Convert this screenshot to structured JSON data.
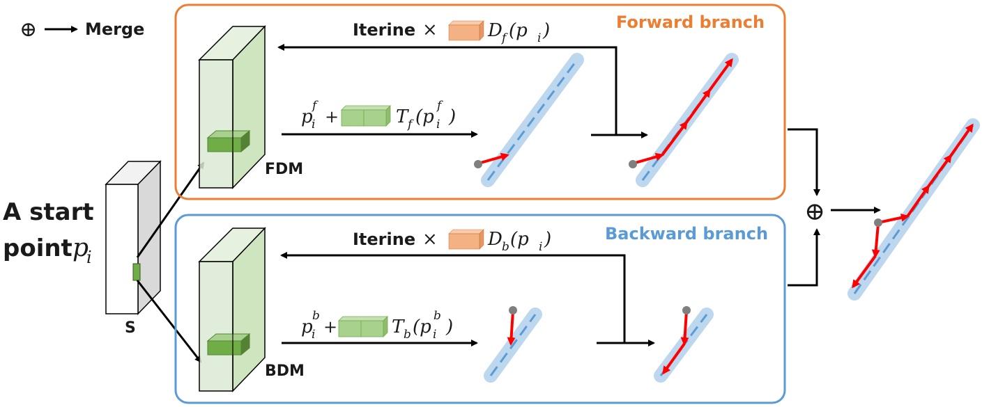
{
  "legend": {
    "symbol": "⊕",
    "label": "Merge"
  },
  "start": {
    "line1": "A start",
    "line2": "point",
    "var": "p",
    "sub": "i",
    "map_label": "S"
  },
  "forward": {
    "title": "Forward branch",
    "module": "FDM",
    "iter_word": "Iterine",
    "times": "×",
    "d_fn": "D",
    "d_sub": "f",
    "d_arg": "(p",
    "d_arg_sub": "i",
    "d_close": ")",
    "eq_p": "p",
    "eq_p_sup": "f",
    "eq_p_sub": "i",
    "eq_plus": "+",
    "t_fn": "T",
    "t_sub": "f",
    "t_arg": "(p",
    "t_arg_sup": "f",
    "t_arg_sub": "i",
    "t_close": ")",
    "color": "#ED7D31"
  },
  "backward": {
    "title": "Backward branch",
    "module": "BDM",
    "iter_word": "Iterine",
    "times": "×",
    "d_fn": "D",
    "d_sub": "b",
    "d_arg": "(p",
    "d_arg_sub": "i",
    "d_close": ")",
    "eq_p": "p",
    "eq_p_sup": "b",
    "eq_p_sub": "i",
    "eq_plus": "+",
    "t_fn": "T",
    "t_sub": "b",
    "t_arg": "(p",
    "t_arg_sup": "b",
    "t_arg_sub": "i",
    "t_close": ")",
    "color": "#5B9BD5"
  },
  "merge_symbol": "⊕",
  "colors": {
    "vessel_glow": "#BDD7EE",
    "centerline": "#5B9BD5",
    "step_arrow": "#FF0000",
    "start_dot": "#7F7F7F",
    "feature_block": "#70AD47",
    "distance_block": "#F4B183"
  }
}
